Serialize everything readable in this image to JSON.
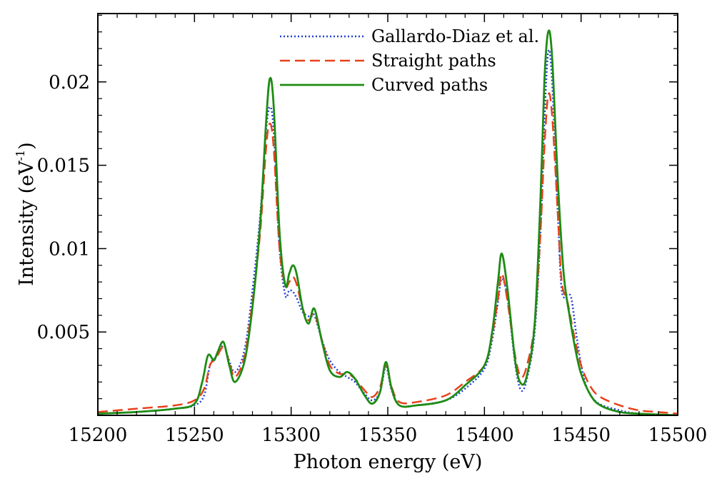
{
  "chart_data": {
    "type": "line",
    "title": "",
    "xlabel": "Photon energy (eV)",
    "ylabel_main": "Intensity (eV",
    "ylabel_sup": "-1",
    "ylabel_close": ")",
    "xlim": [
      15200,
      15500
    ],
    "ylim": [
      0,
      0.0241
    ],
    "xticks": [
      15200,
      15250,
      15300,
      15350,
      15400,
      15450,
      15500
    ],
    "xtick_labels": [
      "15200",
      "15250",
      "15300",
      "15350",
      "15400",
      "15450",
      "15500"
    ],
    "yticks": [
      0.005,
      0.01,
      0.015,
      0.02
    ],
    "ytick_labels": [
      "0.005",
      "0.01",
      "0.015",
      "0.02"
    ],
    "legend_position": "top-center",
    "series": [
      {
        "name": "Gallardo-Diaz et al.",
        "style": "dotted",
        "color": "#1f3fd6",
        "x": [
          15200,
          15220,
          15240,
          15250,
          15255,
          15258,
          15261,
          15265,
          15267,
          15271,
          15276,
          15280,
          15284,
          15287,
          15289,
          15291,
          15294,
          15297,
          15299,
          15301,
          15303,
          15306,
          15310,
          15312,
          15316,
          15320,
          15325,
          15329,
          15333,
          15338,
          15342,
          15346,
          15349,
          15352,
          15356,
          15365,
          15380,
          15390,
          15400,
          15404,
          15407,
          15409,
          15412,
          15416,
          15419,
          15422,
          15426,
          15429,
          15431,
          15433,
          15435,
          15438,
          15440,
          15443,
          15445,
          15448,
          15452,
          15458,
          15470,
          15480,
          15490,
          15500
        ],
        "y": [
          0.0001,
          0.0002,
          0.0004,
          0.0006,
          0.0012,
          0.003,
          0.0035,
          0.0042,
          0.0036,
          0.0026,
          0.004,
          0.0075,
          0.012,
          0.017,
          0.0185,
          0.017,
          0.01,
          0.0072,
          0.0075,
          0.0074,
          0.007,
          0.0062,
          0.0059,
          0.006,
          0.0045,
          0.0033,
          0.0026,
          0.0023,
          0.002,
          0.0013,
          0.0009,
          0.0014,
          0.0029,
          0.0015,
          0.0006,
          0.0006,
          0.0009,
          0.0016,
          0.0028,
          0.0045,
          0.0068,
          0.0082,
          0.007,
          0.003,
          0.0015,
          0.0022,
          0.005,
          0.011,
          0.0175,
          0.0218,
          0.02,
          0.012,
          0.0075,
          0.0072,
          0.007,
          0.0045,
          0.002,
          0.0008,
          0.0003,
          0.0001,
          5e-05,
          0.0
        ]
      },
      {
        "name": "Straight paths",
        "style": "dashed",
        "color": "#e8401c",
        "x": [
          15200,
          15220,
          15240,
          15250,
          15255,
          15258,
          15261,
          15265,
          15268,
          15271,
          15276,
          15280,
          15284,
          15287,
          15289,
          15291,
          15294,
          15297,
          15299,
          15301,
          15303,
          15306,
          15309,
          15312,
          15316,
          15320,
          15325,
          15329,
          15333,
          15338,
          15342,
          15346,
          15349,
          15352,
          15356,
          15365,
          15380,
          15390,
          15400,
          15404,
          15407,
          15409,
          15412,
          15416,
          15419,
          15422,
          15426,
          15429,
          15431,
          15433,
          15435,
          15438,
          15440,
          15443,
          15446,
          15450,
          15455,
          15460,
          15470,
          15480,
          15490,
          15500
        ],
        "y": [
          0.0002,
          0.0004,
          0.0006,
          0.0009,
          0.0016,
          0.003,
          0.0034,
          0.0041,
          0.0032,
          0.0023,
          0.0036,
          0.0068,
          0.011,
          0.016,
          0.0175,
          0.016,
          0.01,
          0.0078,
          0.008,
          0.0083,
          0.0078,
          0.0064,
          0.0057,
          0.0061,
          0.0045,
          0.003,
          0.0025,
          0.0025,
          0.0022,
          0.0015,
          0.0011,
          0.0017,
          0.003,
          0.0017,
          0.0008,
          0.0008,
          0.0012,
          0.002,
          0.003,
          0.0048,
          0.007,
          0.0085,
          0.0068,
          0.0035,
          0.0023,
          0.003,
          0.0055,
          0.011,
          0.016,
          0.0192,
          0.018,
          0.012,
          0.008,
          0.0068,
          0.005,
          0.003,
          0.0017,
          0.0011,
          0.0006,
          0.0003,
          0.0002,
          0.0001
        ]
      },
      {
        "name": "Curved paths",
        "style": "solid",
        "color": "#1e8c14",
        "x": [
          15200,
          15220,
          15240,
          15250,
          15254,
          15257,
          15260,
          15262,
          15265,
          15268,
          15271,
          15276,
          15280,
          15284,
          15287,
          15289,
          15291,
          15294,
          15297,
          15299,
          15301,
          15303,
          15306,
          15309,
          15312,
          15316,
          15320,
          15325,
          15329,
          15333,
          15338,
          15342,
          15346,
          15349,
          15352,
          15356,
          15365,
          15380,
          15390,
          15400,
          15404,
          15407,
          15409,
          15412,
          15416,
          15419,
          15422,
          15426,
          15429,
          15431,
          15433,
          15435,
          15438,
          15441,
          15444,
          15447,
          15450,
          15455,
          15460,
          15470,
          15480,
          15490,
          15500
        ],
        "y": [
          0.0001,
          0.0002,
          0.0004,
          0.0007,
          0.002,
          0.0036,
          0.0033,
          0.0038,
          0.0044,
          0.003,
          0.002,
          0.0033,
          0.0065,
          0.0115,
          0.0175,
          0.0202,
          0.0185,
          0.011,
          0.0078,
          0.0085,
          0.009,
          0.0084,
          0.0064,
          0.0055,
          0.0064,
          0.0044,
          0.0027,
          0.0023,
          0.0026,
          0.0022,
          0.0012,
          0.0007,
          0.0014,
          0.0032,
          0.0016,
          0.0006,
          0.0006,
          0.0009,
          0.0018,
          0.003,
          0.005,
          0.008,
          0.0097,
          0.0075,
          0.0032,
          0.0019,
          0.0024,
          0.0055,
          0.013,
          0.02,
          0.023,
          0.0215,
          0.014,
          0.0085,
          0.006,
          0.004,
          0.0025,
          0.0012,
          0.0006,
          0.0002,
          0.0001,
          5e-05,
          0.0
        ]
      }
    ]
  }
}
